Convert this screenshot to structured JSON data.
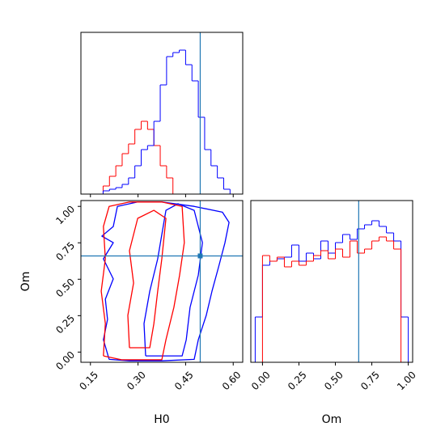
{
  "chart_data": [
    {
      "type": "histogram",
      "xlim": [
        0.12,
        0.63
      ],
      "ylim": [
        0,
        200
      ],
      "xticks": [
        0.15,
        0.3,
        0.45,
        0.6
      ],
      "xticklabels": false,
      "truth": 0.496,
      "truth_color": "#1f77b4",
      "bins": [
        0.13,
        0.15,
        0.17,
        0.19,
        0.21,
        0.23,
        0.25,
        0.27,
        0.29,
        0.31,
        0.33,
        0.35,
        0.37,
        0.39,
        0.41,
        0.43,
        0.45,
        0.47,
        0.49,
        0.51,
        0.53,
        0.55,
        0.57,
        0.59,
        0.61,
        0.63
      ],
      "series": [
        {
          "color": "#ff0000",
          "values": [
            0,
            0,
            0,
            10,
            22,
            35,
            50,
            62,
            80,
            90,
            80,
            60,
            35,
            20,
            0,
            0,
            0,
            0,
            0,
            0,
            0,
            0,
            0,
            0,
            0
          ]
        },
        {
          "color": "#0000ff",
          "values": [
            0,
            0,
            0,
            4,
            6,
            8,
            12,
            20,
            35,
            55,
            60,
            90,
            135,
            170,
            175,
            178,
            160,
            140,
            95,
            55,
            35,
            20,
            6,
            0,
            0
          ]
        }
      ]
    },
    {
      "type": "contour",
      "xlabel": "H0",
      "ylabel": "Om",
      "xlim": [
        0.12,
        0.63
      ],
      "ylim": [
        -0.07,
        1.04
      ],
      "xticks": [
        0.15,
        {
          "value": 0.3,
          "label": "0.30"
        },
        0.45,
        {
          "value": 0.6,
          "label": "0.60"
        }
      ],
      "yticks": [
        {
          "value": 0,
          "label": "0.00"
        },
        0.25,
        {
          "value": 0.5,
          "label": "0.50"
        },
        0.75,
        {
          "value": 1,
          "label": "1.00"
        }
      ],
      "truth": [
        0.496,
        0.66
      ],
      "truth_color": "#1f77b4",
      "contours": [
        {
          "color": "#0000ff",
          "x": [
            0.209,
            0.191,
            0.204,
            0.197,
            0.222,
            0.191,
            0.222,
            0.186,
            0.222,
            0.235,
            0.299,
            0.375,
            0.477,
            0.566,
            0.587,
            0.574,
            0.554,
            0.533,
            0.515,
            0.49,
            0.477,
            0.375,
            0.273,
            0.209
          ],
          "y": [
            -0.05,
            0.085,
            0.224,
            0.363,
            0.502,
            0.64,
            0.751,
            0.796,
            0.862,
            1.0,
            1.03,
            1.03,
            1.0,
            0.96,
            0.89,
            0.75,
            0.585,
            0.418,
            0.252,
            0.085,
            -0.05,
            -0.06,
            -0.06,
            -0.05
          ]
        },
        {
          "color": "#0000ff",
          "x": [
            0.324,
            0.319,
            0.337,
            0.362,
            0.375,
            0.388,
            0.426,
            0.477,
            0.503,
            0.49,
            0.464,
            0.452,
            0.439,
            0.324
          ],
          "y": [
            -0.026,
            0.196,
            0.418,
            0.64,
            0.807,
            0.973,
            1.018,
            0.973,
            0.751,
            0.529,
            0.307,
            0.085,
            -0.026,
            -0.026
          ]
        },
        {
          "color": "#ff0000",
          "x": [
            0.191,
            0.197,
            0.184,
            0.197,
            0.191,
            0.209,
            0.273,
            0.375,
            0.439,
            0.446,
            0.431,
            0.413,
            0.388,
            0.375,
            0.248,
            0.191
          ],
          "y": [
            -0.026,
            0.196,
            0.418,
            0.64,
            0.862,
            1.0,
            1.03,
            1.03,
            1.0,
            0.751,
            0.529,
            0.307,
            0.085,
            -0.053,
            -0.053,
            -0.026
          ]
        },
        {
          "color": "#ff0000",
          "x": [
            0.273,
            0.268,
            0.286,
            0.273,
            0.299,
            0.35,
            0.388,
            0.375,
            0.362,
            0.35,
            0.337,
            0.273
          ],
          "y": [
            0.03,
            0.252,
            0.474,
            0.696,
            0.918,
            0.973,
            0.918,
            0.64,
            0.418,
            0.196,
            0.03,
            0.03
          ]
        }
      ]
    },
    {
      "type": "histogram",
      "xlabel": "Om",
      "xlim": [
        -0.08,
        1.03
      ],
      "ylim": [
        0,
        200
      ],
      "xticks": [
        {
          "value": 0,
          "label": "0.00"
        },
        0.25,
        {
          "value": 0.5,
          "label": "0.50"
        },
        0.75,
        {
          "value": 1,
          "label": "1.00"
        }
      ],
      "xticklabels": true,
      "truth": 0.66,
      "truth_color": "#1f77b4",
      "bins": [
        -0.05,
        0,
        0.05,
        0.1,
        0.15,
        0.2,
        0.25,
        0.3,
        0.35,
        0.4,
        0.45,
        0.5,
        0.55,
        0.6,
        0.65,
        0.7,
        0.75,
        0.8,
        0.85,
        0.9,
        0.95,
        1.0
      ],
      "series": [
        {
          "color": "#0000ff",
          "values": [
            56,
            120,
            125,
            128,
            130,
            145,
            125,
            135,
            128,
            150,
            135,
            148,
            158,
            152,
            165,
            170,
            175,
            168,
            160,
            150,
            56
          ]
        },
        {
          "color": "#ff0000",
          "values": [
            0,
            132,
            125,
            130,
            118,
            125,
            120,
            125,
            132,
            138,
            128,
            140,
            130,
            150,
            135,
            140,
            150,
            155,
            150,
            140,
            0
          ]
        }
      ]
    }
  ]
}
